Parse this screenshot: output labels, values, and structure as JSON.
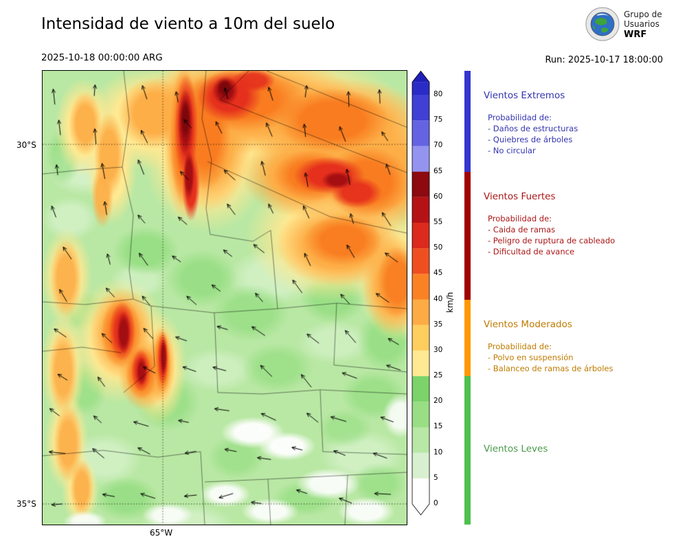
{
  "header": {
    "title": "Intensidad de viento a 10m del suelo",
    "valid_time": "2025-10-18 00:00:00 ARG",
    "run_label": "Run: 2025-10-17 18:00:00"
  },
  "logo": {
    "org_line1": "Grupo de",
    "org_line2": "Usuarios",
    "org_line3": "WRF"
  },
  "map": {
    "lat30": "30°S",
    "lat35": "35°S",
    "lon65": "65°W"
  },
  "colorbar": {
    "unit": "km/h",
    "ticks": [
      0,
      5,
      10,
      15,
      20,
      25,
      30,
      35,
      40,
      45,
      50,
      55,
      60,
      65,
      70,
      75,
      80
    ],
    "segment_colors": [
      "#ffffff",
      "#d8f0cf",
      "#b9e7a6",
      "#99dd85",
      "#7bd36a",
      "#ffe992",
      "#fece5e",
      "#fdab44",
      "#fb8125",
      "#ef4f20",
      "#dc2a1c",
      "#b51216",
      "#8c0a10",
      "#9494f0",
      "#6464e2",
      "#4040d4"
    ],
    "over_color": "#2b2bc6",
    "arrow_color": "#1f1fb8"
  },
  "legend": {
    "categories": [
      {
        "id": "extremos",
        "label": "Vientos Extremos",
        "bar_color": "#3535cf",
        "text_color": "#3333b0",
        "range": [
          65,
          null
        ],
        "prob_label": "Probabilidad de:",
        "items": [
          "- Daños de estructuras",
          "- Quiebres de árboles",
          "- No circular"
        ]
      },
      {
        "id": "fuertes",
        "label": "Vientos Fuertes",
        "bar_color": "#a00000",
        "text_color": "#aa1616",
        "range": [
          40,
          65
        ],
        "prob_label": "Probabilidad de:",
        "items": [
          "- Caida de ramas",
          "- Peligro de ruptura de cableado",
          "- Dificultad de avance"
        ]
      },
      {
        "id": "moderados",
        "label": "Vientos Moderados",
        "bar_color": "#ff9800",
        "text_color": "#bf7b00",
        "range": [
          25,
          40
        ],
        "prob_label": "Probabilidad de:",
        "items": [
          "- Polvo en suspensión",
          "- Balanceo de ramas de árboles"
        ]
      },
      {
        "id": "leves",
        "label": "Vientos Leves",
        "bar_color": "#4ec04e",
        "text_color": "#4a9a4a",
        "range": [
          0,
          25
        ],
        "prob_label": "",
        "items": []
      }
    ]
  }
}
